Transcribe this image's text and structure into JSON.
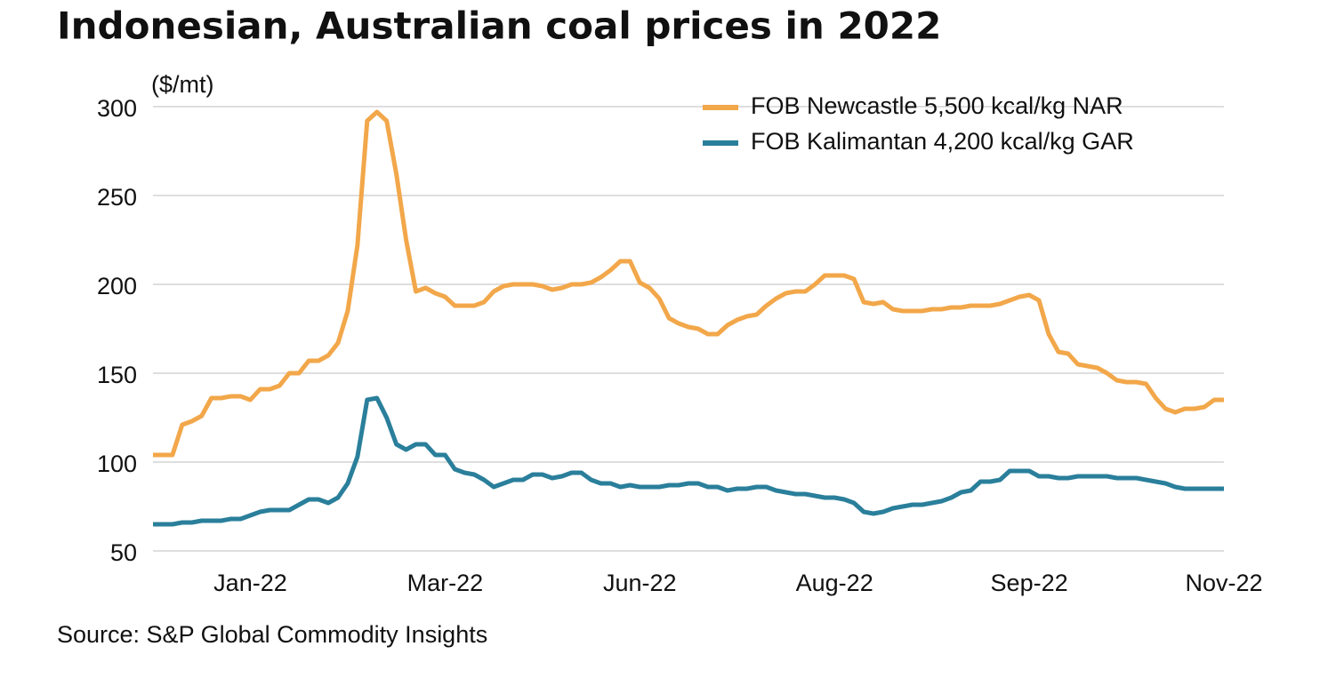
{
  "chart_data": {
    "type": "line",
    "title": "Indonesian, Australian coal prices in 2022",
    "y_label": "($/mt)",
    "source": "Source: S&P Global Commodity Insights",
    "categories": [
      null,
      null,
      null,
      null,
      null,
      null,
      null,
      null,
      null,
      null,
      "Jan-22",
      null,
      null,
      null,
      null,
      null,
      null,
      null,
      null,
      null,
      null,
      null,
      null,
      null,
      null,
      null,
      null,
      null,
      null,
      null,
      "Mar-22",
      null,
      null,
      null,
      null,
      null,
      null,
      null,
      null,
      null,
      null,
      null,
      null,
      null,
      null,
      null,
      null,
      null,
      null,
      null,
      "Jun-22",
      null,
      null,
      null,
      null,
      null,
      null,
      null,
      null,
      null,
      null,
      null,
      null,
      null,
      null,
      null,
      null,
      null,
      null,
      null,
      "Aug-22",
      null,
      null,
      null,
      null,
      null,
      null,
      null,
      null,
      null,
      null,
      null,
      null,
      null,
      null,
      null,
      null,
      null,
      null,
      null,
      "Sep-22",
      null,
      null,
      null,
      null,
      null,
      null,
      null,
      null,
      null,
      null,
      null,
      null,
      null,
      null,
      null,
      null,
      null,
      null,
      null,
      "Nov-22"
    ],
    "series": [
      {
        "name": "FOB Newcastle 5,500 kcal/kg NAR",
        "color": "#f2a74a",
        "values": [
          104,
          104,
          104,
          121,
          123,
          126,
          136,
          136,
          137,
          137,
          135,
          141,
          141,
          143,
          150,
          150,
          157,
          157,
          160,
          167,
          185,
          222,
          292,
          297,
          292,
          262,
          225,
          196,
          198,
          195,
          193,
          188,
          188,
          188,
          190,
          196,
          199,
          200,
          200,
          200,
          199,
          197,
          198,
          200,
          200,
          201,
          204,
          208,
          213,
          213,
          201,
          198,
          192,
          181,
          178,
          176,
          175,
          172,
          172,
          177,
          180,
          182,
          183,
          188,
          192,
          195,
          196,
          196,
          200,
          205,
          205,
          205,
          203,
          190,
          189,
          190,
          186,
          185,
          185,
          185,
          186,
          186,
          187,
          187,
          188,
          188,
          188,
          189,
          191,
          193,
          194,
          191,
          172,
          162,
          161,
          155,
          154,
          153,
          150,
          146,
          145,
          145,
          144,
          136,
          130,
          128,
          130,
          130,
          131,
          135,
          135
        ]
      },
      {
        "name": "FOB Kalimantan 4,200 kcal/kg GAR",
        "color": "#2a7f9b",
        "values": [
          65,
          65,
          65,
          66,
          66,
          67,
          67,
          67,
          68,
          68,
          70,
          72,
          73,
          73,
          73,
          76,
          79,
          79,
          77,
          80,
          88,
          103,
          135,
          136,
          125,
          110,
          107,
          110,
          110,
          104,
          104,
          96,
          94,
          93,
          90,
          86,
          88,
          90,
          90,
          93,
          93,
          91,
          92,
          94,
          94,
          90,
          88,
          88,
          86,
          87,
          86,
          86,
          86,
          87,
          87,
          88,
          88,
          86,
          86,
          84,
          85,
          85,
          86,
          86,
          84,
          83,
          82,
          82,
          81,
          80,
          80,
          79,
          77,
          72,
          71,
          72,
          74,
          75,
          76,
          76,
          77,
          78,
          80,
          83,
          84,
          89,
          89,
          90,
          95,
          95,
          95,
          92,
          92,
          91,
          91,
          92,
          92,
          92,
          92,
          91,
          91,
          91,
          90,
          89,
          88,
          86,
          85,
          85,
          85,
          85,
          85
        ]
      }
    ],
    "ylim": [
      50,
      300
    ],
    "yticks": [
      50,
      100,
      150,
      200,
      250,
      300
    ],
    "grid": true,
    "legend": "top-right"
  }
}
